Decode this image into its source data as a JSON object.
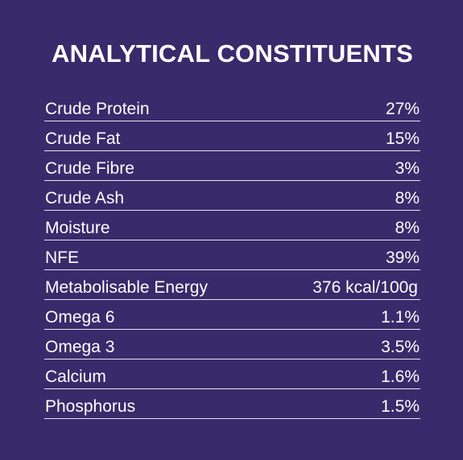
{
  "title": "ANALYTICAL CONSTITUENTS",
  "constituents": [
    {
      "label": "Crude Protein",
      "value": "27%"
    },
    {
      "label": "Crude Fat",
      "value": "15%"
    },
    {
      "label": "Crude Fibre",
      "value": "3%"
    },
    {
      "label": "Crude Ash",
      "value": "8%"
    },
    {
      "label": "Moisture",
      "value": "8%"
    },
    {
      "label": "NFE",
      "value": "39%"
    },
    {
      "label": "Metabolisable Energy",
      "value": "376 kcal/100g"
    },
    {
      "label": "Omega 6",
      "value": "1.1%"
    },
    {
      "label": "Omega 3",
      "value": "3.5%"
    },
    {
      "label": "Calcium",
      "value": "1.6%"
    },
    {
      "label": "Phosphorus",
      "value": "1.5%"
    }
  ]
}
